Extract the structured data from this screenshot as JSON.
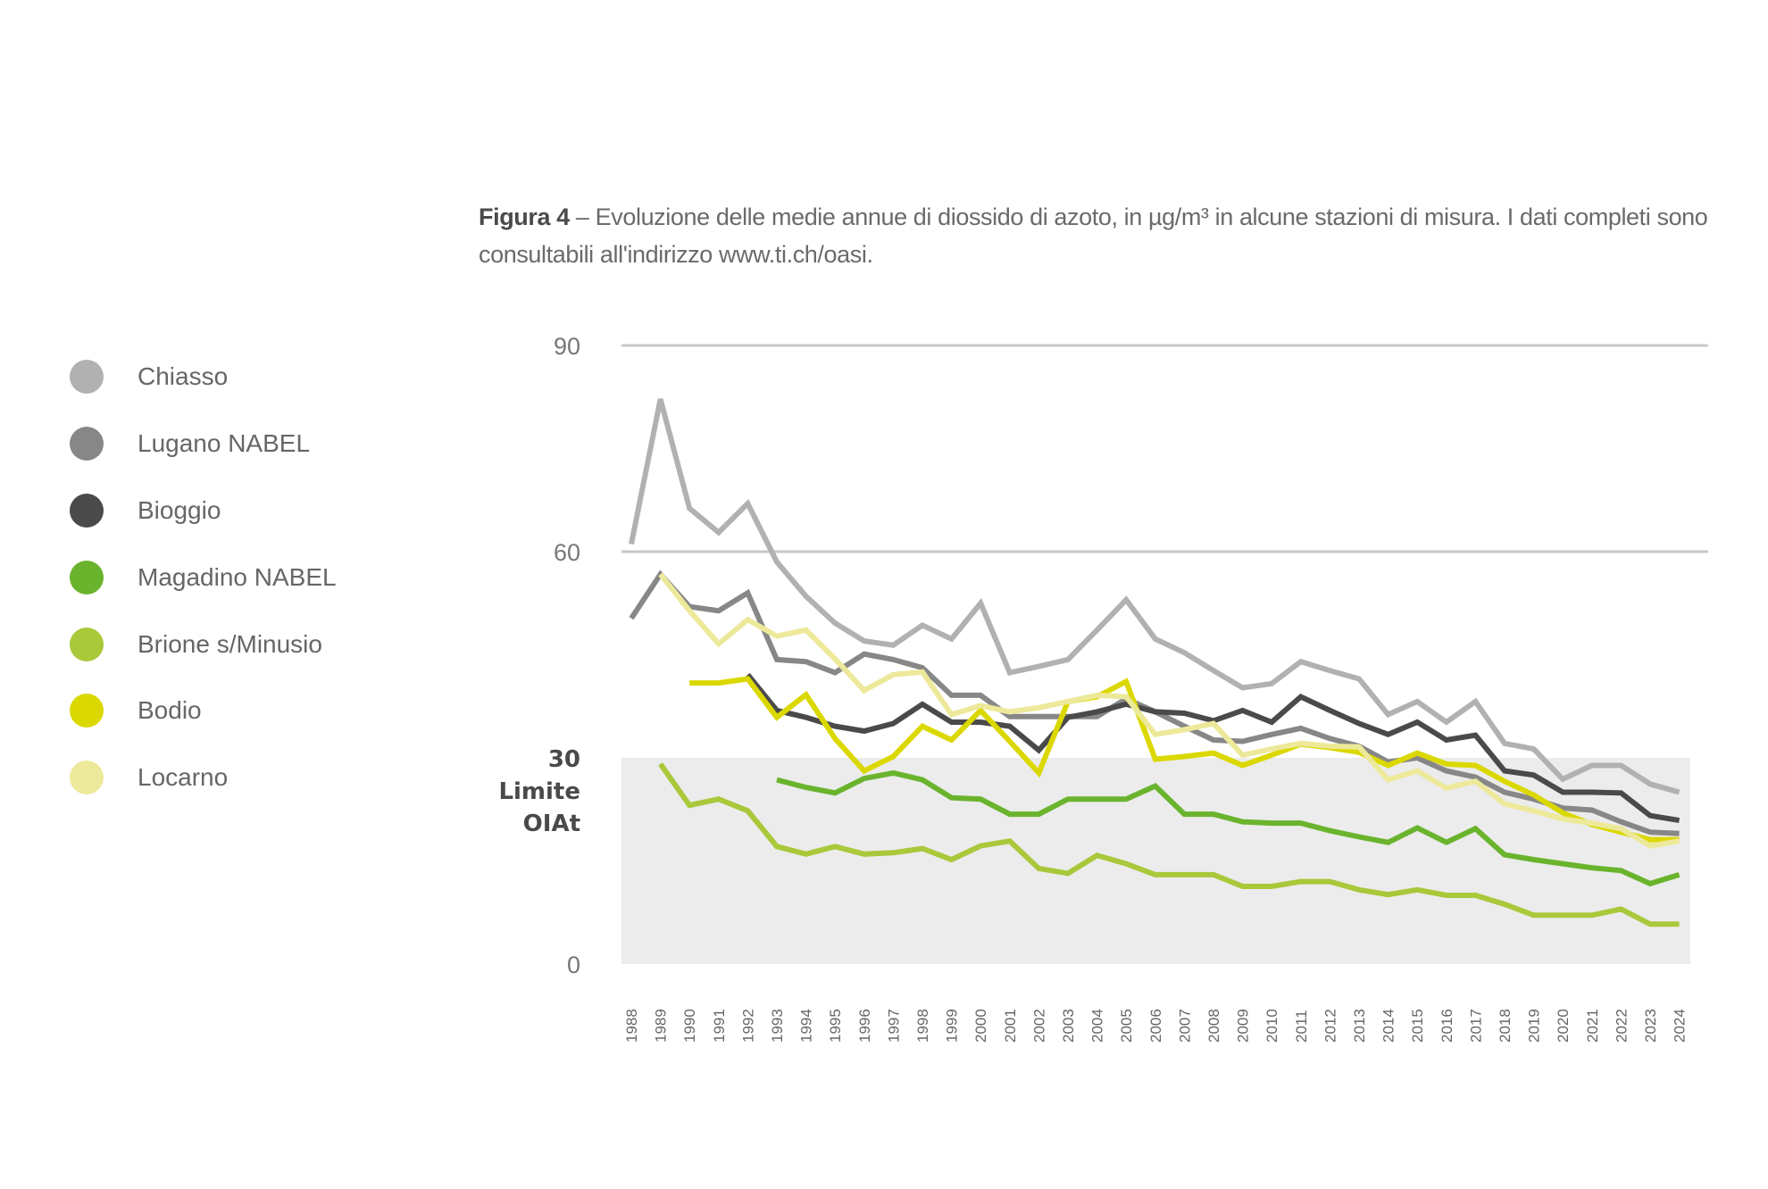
{
  "caption": {
    "figure_label": "Figura 4",
    "text": " – Evoluzione delle medie annue di diossido di azoto, in µg/m³ in alcune stazioni di misura. I dati completi sono consultabili all'indirizzo www.ti.ch/oasi."
  },
  "chart_data": {
    "type": "line",
    "title": "Figura 4 – Evoluzione delle medie annue di diossido di azoto, in µg/m³ in alcune stazioni di misura. I dati completi sono consultabili all'indirizzo www.ti.ch/oasi.",
    "xlabel": "",
    "ylabel": "µg/m³",
    "ylim": [
      0,
      90
    ],
    "yticks": [
      0,
      30,
      60,
      90
    ],
    "ytick_labels": [
      "0",
      "30",
      "60",
      "90"
    ],
    "limit": {
      "value": 30,
      "label_lines": [
        "30",
        "Limite",
        "OIAt"
      ],
      "band_color": "#ececec"
    },
    "gridlines": [
      60,
      90
    ],
    "grid_color": "#c8c8c8",
    "x": [
      1988,
      1989,
      1990,
      1991,
      1992,
      1993,
      1994,
      1995,
      1996,
      1997,
      1998,
      1999,
      2000,
      2001,
      2002,
      2003,
      2004,
      2005,
      2006,
      2007,
      2008,
      2009,
      2010,
      2011,
      2012,
      2013,
      2014,
      2015,
      2016,
      2017,
      2018,
      2019,
      2020,
      2021,
      2022,
      2023,
      2024
    ],
    "legend_position": "left",
    "series": [
      {
        "name": "Chiasso",
        "color": "#b1b1b1",
        "values": [
          61.1,
          82.2,
          66.3,
          62.8,
          67.0,
          58.5,
          53.5,
          49.6,
          47.0,
          46.4,
          49.3,
          47.3,
          52.5,
          42.4,
          43.3,
          44.3,
          48.6,
          53.0,
          47.3,
          45.3,
          42.7,
          40.2,
          40.8,
          44.0,
          42.7,
          41.5,
          36.3,
          38.2,
          35.2,
          38.2,
          32.1,
          31.3,
          26.9,
          28.9,
          28.9,
          26.2,
          25.0
        ]
      },
      {
        "name": "Lugano NABEL",
        "color": "#878787",
        "values": [
          50.3,
          56.7,
          52.0,
          51.4,
          54.0,
          44.3,
          44.0,
          42.4,
          45.1,
          44.3,
          43.1,
          39.1,
          39.1,
          36.0,
          36.0,
          36.0,
          36.0,
          38.6,
          36.7,
          34.6,
          32.6,
          32.4,
          33.4,
          34.3,
          32.8,
          31.7,
          29.4,
          30.0,
          28.1,
          27.2,
          25.0,
          24.0,
          22.7,
          22.4,
          20.7,
          19.2,
          19.0
        ]
      },
      {
        "name": "Bioggio",
        "color": "#4a4a4a",
        "values": [
          null,
          null,
          null,
          null,
          42.1,
          36.9,
          35.9,
          34.6,
          33.9,
          35.0,
          37.8,
          35.2,
          35.2,
          34.6,
          31.1,
          35.9,
          36.7,
          37.8,
          36.7,
          36.5,
          35.4,
          36.9,
          35.2,
          38.9,
          36.9,
          35.0,
          33.4,
          35.2,
          32.6,
          33.3,
          28.1,
          27.5,
          25.0,
          25.0,
          24.9,
          21.6,
          20.9
        ]
      },
      {
        "name": "Magadino NABEL",
        "color": "#6ab42d",
        "values": [
          null,
          null,
          null,
          null,
          null,
          26.8,
          25.7,
          24.9,
          27.0,
          27.8,
          26.8,
          24.2,
          24.0,
          21.8,
          21.8,
          24.0,
          24.0,
          24.0,
          25.9,
          21.8,
          21.8,
          20.7,
          20.5,
          20.5,
          19.4,
          18.5,
          17.7,
          19.8,
          17.7,
          19.7,
          15.9,
          15.2,
          14.6,
          14.0,
          13.6,
          11.7,
          13.0
        ]
      },
      {
        "name": "Brione s/Minusio",
        "color": "#a9c83a",
        "values": [
          null,
          29.1,
          23.1,
          24.0,
          22.3,
          17.1,
          16.0,
          17.1,
          16.0,
          16.2,
          16.8,
          15.2,
          17.2,
          17.9,
          13.9,
          13.2,
          15.8,
          14.6,
          13.0,
          13.0,
          13.0,
          11.3,
          11.3,
          12.0,
          12.0,
          10.8,
          10.1,
          10.8,
          10.0,
          10.0,
          8.7,
          7.1,
          7.1,
          7.1,
          8.0,
          5.8,
          5.8
        ]
      },
      {
        "name": "Bodio",
        "color": "#dbd800",
        "values": [
          null,
          null,
          40.9,
          40.9,
          41.5,
          35.9,
          39.2,
          32.8,
          28.1,
          30.2,
          34.6,
          32.6,
          36.9,
          32.4,
          27.8,
          38.2,
          38.9,
          41.1,
          29.8,
          30.2,
          30.7,
          28.9,
          30.4,
          32.0,
          31.5,
          30.8,
          28.9,
          30.7,
          29.1,
          28.9,
          26.6,
          24.6,
          22.0,
          20.3,
          19.2,
          18.1,
          18.1
        ]
      },
      {
        "name": "Locarno",
        "color": "#ede99a",
        "values": [
          null,
          56.7,
          51.4,
          46.6,
          50.1,
          47.7,
          48.6,
          44.4,
          39.8,
          42.1,
          42.5,
          36.3,
          37.6,
          36.7,
          37.3,
          38.2,
          39.1,
          38.9,
          33.4,
          34.1,
          35.0,
          30.4,
          31.3,
          32.1,
          31.7,
          31.6,
          26.8,
          28.1,
          25.6,
          26.6,
          23.3,
          22.3,
          21.1,
          20.5,
          19.7,
          17.2,
          17.9
        ]
      }
    ]
  }
}
